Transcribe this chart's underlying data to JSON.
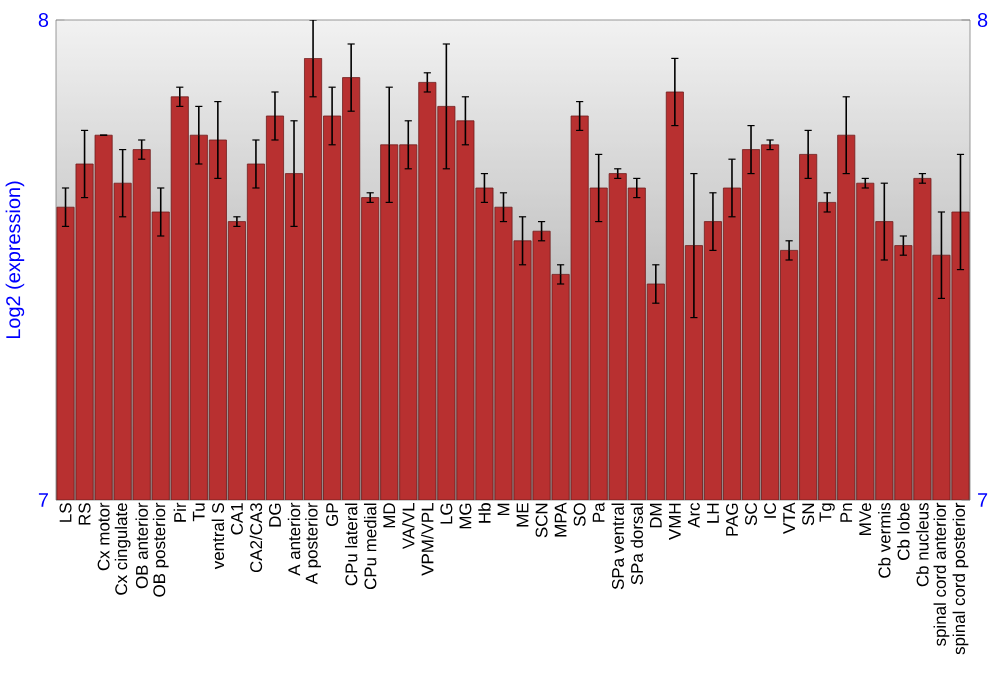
{
  "chart_data": {
    "type": "bar",
    "ylabel": "Log2 (expression)",
    "categories": [
      "LS",
      "RS",
      "Cx motor",
      "Cx cingulate",
      "OB anterior",
      "OB posterior",
      "Pir",
      "Tu",
      "ventral S",
      "CA1",
      "CA2/CA3",
      "DG",
      "A anterior",
      "A posterior",
      "GP",
      "CPu lateral",
      "CPu medial",
      "MD",
      "VA/VL",
      "VPM/VPL",
      "LG",
      "MG",
      "Hb",
      "M",
      "ME",
      "SCN",
      "MPA",
      "SO",
      "Pa",
      "SPa ventral",
      "SPa dorsal",
      "DM",
      "VMH",
      "Arc",
      "LH",
      "PAG",
      "SC",
      "IC",
      "VTA",
      "SN",
      "Tg",
      "Pn",
      "MVe",
      "Cb vermis",
      "Cb lobe",
      "Cb nucleus",
      "spinal cord anterior",
      "spinal cord posterior"
    ],
    "values": [
      7.61,
      7.7,
      7.76,
      7.66,
      7.73,
      7.6,
      7.84,
      7.76,
      7.75,
      7.58,
      7.7,
      7.8,
      7.68,
      7.92,
      7.8,
      7.88,
      7.63,
      7.74,
      7.74,
      7.87,
      7.82,
      7.79,
      7.65,
      7.61,
      7.54,
      7.56,
      7.47,
      7.8,
      7.65,
      7.68,
      7.65,
      7.45,
      7.85,
      7.53,
      7.58,
      7.65,
      7.73,
      7.74,
      7.52,
      7.72,
      7.62,
      7.76,
      7.66,
      7.58,
      7.53,
      7.67,
      7.51,
      7.6
    ],
    "errors": [
      0.04,
      0.07,
      0.0,
      0.07,
      0.02,
      0.05,
      0.02,
      0.06,
      0.08,
      0.01,
      0.05,
      0.05,
      0.11,
      0.08,
      0.06,
      0.07,
      0.01,
      0.12,
      0.05,
      0.02,
      0.13,
      0.05,
      0.03,
      0.03,
      0.05,
      0.02,
      0.02,
      0.03,
      0.07,
      0.01,
      0.02,
      0.04,
      0.07,
      0.15,
      0.06,
      0.06,
      0.05,
      0.01,
      0.02,
      0.05,
      0.02,
      0.08,
      0.01,
      0.08,
      0.02,
      0.01,
      0.09,
      0.12
    ],
    "color": "#b83030",
    "ylim": [
      7,
      8
    ],
    "yticks": [
      7,
      8
    ],
    "y2lim": [
      7,
      8
    ],
    "y2ticks": [
      7,
      8
    ],
    "grid": false
  }
}
